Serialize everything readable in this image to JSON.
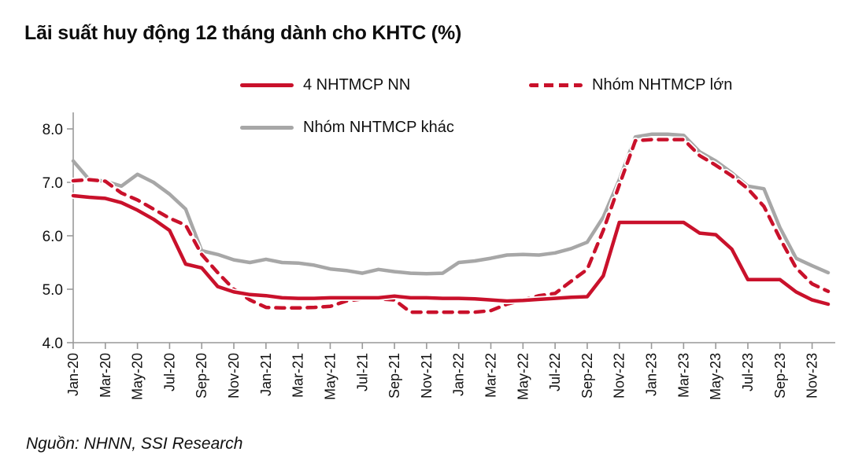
{
  "report": {
    "title": "Lãi suất huy động 12 tháng dành cho KHTC (%)",
    "source": "Nguồn: NHNN, SSI Research"
  },
  "colors": {
    "series_red": "#C9112B",
    "series_gray": "#A7A7A7",
    "axis_gray": "#999999",
    "text": "#111111"
  },
  "chart_data": {
    "type": "line",
    "title": "Lãi suất huy động 12 tháng dành cho KHTC (%)",
    "xlabel": "",
    "ylabel": "",
    "ylim": [
      4.0,
      8.0
    ],
    "yticks": [
      "4.0",
      "5.0",
      "6.0",
      "7.0",
      "8.0"
    ],
    "ytick_values": [
      4.0,
      5.0,
      6.0,
      7.0,
      8.0
    ],
    "grid": false,
    "legend_position": "top",
    "x_label_every": 2,
    "x": [
      "Jan-20",
      "Feb-20",
      "Mar-20",
      "Apr-20",
      "May-20",
      "Jun-20",
      "Jul-20",
      "Aug-20",
      "Sep-20",
      "Oct-20",
      "Nov-20",
      "Dec-20",
      "Jan-21",
      "Feb-21",
      "Mar-21",
      "Apr-21",
      "May-21",
      "Jun-21",
      "Jul-21",
      "Aug-21",
      "Sep-21",
      "Oct-21",
      "Nov-21",
      "Dec-21",
      "Jan-22",
      "Feb-22",
      "Mar-22",
      "Apr-22",
      "May-22",
      "Jun-22",
      "Jul-22",
      "Aug-22",
      "Sep-22",
      "Oct-22",
      "Nov-22",
      "Dec-22",
      "Jan-23",
      "Feb-23",
      "Mar-23",
      "Apr-23",
      "May-23",
      "Jun-23",
      "Jul-23",
      "Aug-23",
      "Sep-23",
      "Oct-23",
      "Nov-23",
      "Dec-23"
    ],
    "series": [
      {
        "name": "4 NHTMCP NN",
        "style": "solid",
        "color": "#C9112B",
        "values": [
          6.75,
          6.72,
          6.7,
          6.62,
          6.48,
          6.31,
          6.1,
          5.47,
          5.4,
          5.05,
          4.95,
          4.9,
          4.88,
          4.84,
          4.83,
          4.83,
          4.84,
          4.84,
          4.84,
          4.84,
          4.87,
          4.84,
          4.84,
          4.83,
          4.83,
          4.82,
          4.8,
          4.78,
          4.79,
          4.81,
          4.83,
          4.85,
          4.86,
          5.25,
          6.25,
          6.25,
          6.25,
          6.25,
          6.25,
          6.05,
          6.02,
          5.75,
          5.18,
          5.18,
          5.18,
          4.95,
          4.8,
          4.72
        ]
      },
      {
        "name": "Nhóm NHTMCP lớn",
        "style": "dashed",
        "color": "#C9112B",
        "values": [
          7.03,
          7.05,
          7.02,
          6.8,
          6.67,
          6.5,
          6.33,
          6.2,
          5.65,
          5.31,
          5.0,
          4.8,
          4.66,
          4.65,
          4.65,
          4.66,
          4.68,
          4.78,
          4.82,
          4.82,
          4.8,
          4.57,
          4.57,
          4.57,
          4.57,
          4.57,
          4.6,
          4.72,
          4.8,
          4.88,
          4.92,
          5.15,
          5.37,
          6.1,
          6.95,
          7.78,
          7.8,
          7.8,
          7.8,
          7.5,
          7.32,
          7.12,
          6.88,
          6.55,
          5.95,
          5.4,
          5.1,
          4.96
        ]
      },
      {
        "name": "Nhóm NHTMCP khác",
        "style": "solid",
        "color": "#A7A7A7",
        "values": [
          7.4,
          7.05,
          7.02,
          6.93,
          7.15,
          7.0,
          6.78,
          6.5,
          5.72,
          5.65,
          5.55,
          5.5,
          5.56,
          5.5,
          5.49,
          5.45,
          5.38,
          5.35,
          5.3,
          5.37,
          5.33,
          5.3,
          5.29,
          5.3,
          5.5,
          5.53,
          5.58,
          5.64,
          5.65,
          5.64,
          5.68,
          5.76,
          5.88,
          6.35,
          7.05,
          7.85,
          7.9,
          7.9,
          7.88,
          7.57,
          7.4,
          7.18,
          6.93,
          6.88,
          6.15,
          5.58,
          5.44,
          5.31
        ]
      }
    ]
  }
}
